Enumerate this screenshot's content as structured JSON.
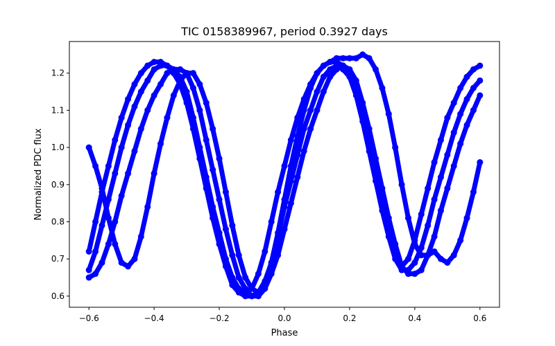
{
  "chart_data": {
    "type": "scatter",
    "title": "TIC 0158389967, period 0.3927 days",
    "xlabel": "Phase",
    "ylabel": "Normalized PDC flux",
    "xlim": [
      -0.66,
      0.66
    ],
    "ylim": [
      0.57,
      1.285
    ],
    "xticks": [
      -0.6,
      -0.4,
      -0.2,
      0.0,
      0.2,
      0.4,
      0.6
    ],
    "xtick_labels": [
      "−0.6",
      "−0.4",
      "−0.2",
      "0.0",
      "0.2",
      "0.4",
      "0.6"
    ],
    "yticks": [
      0.6,
      0.7,
      0.8,
      0.9,
      1.0,
      1.1,
      1.2
    ],
    "ytick_labels": [
      "0.6",
      "0.7",
      "0.8",
      "0.9",
      "1.0",
      "1.1",
      "1.2"
    ],
    "grid": false,
    "marker_color": "#0000ff",
    "series": [
      {
        "x": [
          -0.6,
          -0.58,
          -0.56,
          -0.54,
          -0.52,
          -0.5,
          -0.48,
          -0.46,
          -0.44,
          -0.42,
          -0.4,
          -0.38,
          -0.36,
          -0.34,
          -0.32,
          -0.3,
          -0.28,
          -0.26,
          -0.24,
          -0.22,
          -0.2,
          -0.18,
          -0.16,
          -0.14,
          -0.12,
          -0.1,
          -0.08,
          -0.06,
          -0.04,
          -0.02,
          0.0,
          0.02,
          0.04,
          0.06,
          0.08,
          0.1,
          0.12,
          0.14,
          0.16,
          0.18,
          0.2,
          0.22,
          0.24,
          0.26,
          0.28,
          0.3,
          0.32,
          0.34,
          0.36,
          0.38,
          0.4,
          0.42,
          0.44,
          0.46,
          0.48,
          0.5,
          0.52,
          0.54,
          0.56,
          0.58,
          0.6
        ],
        "y": [
          0.72,
          0.8,
          0.88,
          0.95,
          1.02,
          1.08,
          1.13,
          1.17,
          1.2,
          1.22,
          1.23,
          1.23,
          1.22,
          1.21,
          1.19,
          1.15,
          1.08,
          1.0,
          0.92,
          0.84,
          0.77,
          0.7,
          0.65,
          0.62,
          0.61,
          0.62,
          0.66,
          0.72,
          0.8,
          0.88,
          0.95,
          1.02,
          1.08,
          1.13,
          1.17,
          1.2,
          1.22,
          1.23,
          1.23,
          1.22,
          1.2,
          1.15,
          1.08,
          1.0,
          0.92,
          0.84,
          0.77,
          0.71,
          0.68,
          0.7,
          0.75,
          0.82,
          0.89,
          0.96,
          1.02,
          1.08,
          1.12,
          1.16,
          1.19,
          1.21,
          1.22
        ]
      },
      {
        "x": [
          -0.6,
          -0.58,
          -0.56,
          -0.54,
          -0.52,
          -0.5,
          -0.48,
          -0.46,
          -0.44,
          -0.42,
          -0.4,
          -0.38,
          -0.36,
          -0.34,
          -0.32,
          -0.3,
          -0.28,
          -0.26,
          -0.24,
          -0.22,
          -0.2,
          -0.18,
          -0.16,
          -0.14,
          -0.12,
          -0.1,
          -0.08,
          -0.06,
          -0.04,
          -0.02,
          0.0,
          0.02,
          0.04,
          0.06,
          0.08,
          0.1,
          0.12,
          0.14,
          0.16,
          0.18,
          0.2,
          0.22,
          0.24,
          0.26,
          0.28,
          0.3,
          0.32,
          0.34,
          0.36,
          0.38,
          0.4,
          0.42,
          0.44,
          0.46,
          0.48,
          0.5,
          0.52,
          0.54,
          0.56,
          0.58,
          0.6
        ],
        "y": [
          0.67,
          0.72,
          0.79,
          0.86,
          0.93,
          1.0,
          1.06,
          1.11,
          1.15,
          1.18,
          1.21,
          1.22,
          1.22,
          1.2,
          1.17,
          1.12,
          1.05,
          0.97,
          0.89,
          0.81,
          0.74,
          0.68,
          0.63,
          0.61,
          0.6,
          0.6,
          0.61,
          0.64,
          0.69,
          0.76,
          0.84,
          0.91,
          0.98,
          1.05,
          1.1,
          1.15,
          1.19,
          1.21,
          1.22,
          1.21,
          1.19,
          1.14,
          1.07,
          0.99,
          0.91,
          0.83,
          0.76,
          0.7,
          0.67,
          0.67,
          0.69,
          0.73,
          0.79,
          0.86,
          0.92,
          0.98,
          1.04,
          1.09,
          1.13,
          1.16,
          1.18
        ]
      },
      {
        "x": [
          -0.6,
          -0.58,
          -0.56,
          -0.54,
          -0.52,
          -0.5,
          -0.48,
          -0.46,
          -0.44,
          -0.42,
          -0.4,
          -0.38,
          -0.36,
          -0.34,
          -0.32,
          -0.3,
          -0.28,
          -0.26,
          -0.24,
          -0.22,
          -0.2,
          -0.18,
          -0.16,
          -0.14,
          -0.12,
          -0.1,
          -0.08,
          -0.06,
          -0.04,
          -0.02,
          0.0,
          0.02,
          0.04,
          0.06,
          0.08,
          0.1,
          0.12,
          0.14,
          0.16,
          0.18,
          0.2,
          0.22,
          0.24,
          0.26,
          0.28,
          0.3,
          0.32,
          0.34,
          0.36,
          0.38,
          0.4,
          0.42,
          0.44,
          0.46,
          0.48,
          0.5,
          0.52,
          0.54,
          0.56,
          0.58,
          0.6
        ],
        "y": [
          0.65,
          0.66,
          0.69,
          0.74,
          0.8,
          0.87,
          0.93,
          0.99,
          1.05,
          1.1,
          1.14,
          1.17,
          1.2,
          1.21,
          1.21,
          1.2,
          1.16,
          1.1,
          1.02,
          0.94,
          0.86,
          0.78,
          0.71,
          0.65,
          0.62,
          0.6,
          0.6,
          0.62,
          0.66,
          0.71,
          0.78,
          0.85,
          0.92,
          0.99,
          1.05,
          1.1,
          1.15,
          1.19,
          1.21,
          1.22,
          1.21,
          1.18,
          1.12,
          1.05,
          0.97,
          0.89,
          0.81,
          0.74,
          0.68,
          0.66,
          0.66,
          0.67,
          0.71,
          0.76,
          0.83,
          0.89,
          0.95,
          1.01,
          1.06,
          1.1,
          1.14
        ]
      },
      {
        "x": [
          -0.6,
          -0.58,
          -0.56,
          -0.54,
          -0.52,
          -0.5,
          -0.48,
          -0.46,
          -0.44,
          -0.42,
          -0.4,
          -0.38,
          -0.36,
          -0.34,
          -0.32,
          -0.3,
          -0.28,
          -0.26,
          -0.24,
          -0.22,
          -0.2,
          -0.18,
          -0.16,
          -0.14,
          -0.12,
          -0.1,
          -0.08,
          -0.06,
          -0.04,
          -0.02,
          0.0,
          0.02,
          0.04,
          0.06,
          0.08,
          0.1,
          0.12,
          0.14,
          0.16,
          0.18,
          0.2,
          0.22,
          0.24,
          0.26,
          0.28,
          0.3,
          0.32,
          0.34,
          0.36,
          0.38,
          0.4,
          0.42,
          0.44,
          0.46,
          0.48,
          0.5,
          0.52,
          0.54,
          0.56,
          0.58,
          0.6
        ],
        "y": [
          1.0,
          0.95,
          0.89,
          0.81,
          0.74,
          0.69,
          0.68,
          0.7,
          0.76,
          0.84,
          0.93,
          1.01,
          1.08,
          1.14,
          1.18,
          1.2,
          1.2,
          1.17,
          1.12,
          1.05,
          0.97,
          0.88,
          0.79,
          0.71,
          0.65,
          0.62,
          0.61,
          0.63,
          0.69,
          0.77,
          0.86,
          0.95,
          1.03,
          1.1,
          1.16,
          1.2,
          1.22,
          1.23,
          1.24,
          1.24,
          1.24,
          1.24,
          1.25,
          1.24,
          1.21,
          1.16,
          1.09,
          1.0,
          0.9,
          0.81,
          0.74,
          0.71,
          0.71,
          0.72,
          0.7,
          0.69,
          0.71,
          0.75,
          0.81,
          0.88,
          0.96
        ]
      }
    ]
  }
}
